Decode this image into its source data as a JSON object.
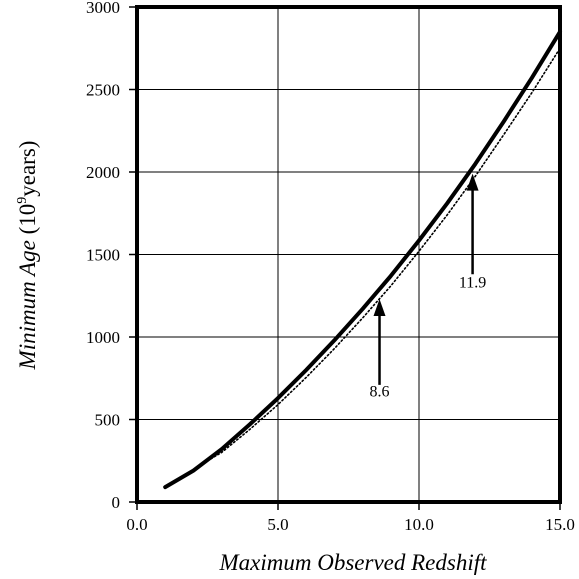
{
  "chart_data": {
    "type": "line",
    "title": "",
    "xlabel": "Maximum Observed Redshift",
    "ylabel": {
      "italic": "Minimum Age",
      "prefix": " (10",
      "sup": "9",
      "suffix": "years)"
    },
    "xlim": [
      0,
      15
    ],
    "ylim": [
      0,
      3000
    ],
    "x_ticks": [
      0,
      5,
      10,
      15
    ],
    "x_tick_labels": [
      "0.0",
      "5.0",
      "10.0",
      "15.0"
    ],
    "y_ticks": [
      0,
      500,
      1000,
      1500,
      2000,
      2500,
      3000
    ],
    "y_tick_labels": [
      "0",
      "500",
      "1000",
      "1500",
      "2000",
      "2500",
      "3000"
    ],
    "grid": true,
    "series": [
      {
        "style": "solid-thick",
        "color": "#000000",
        "x": [
          1,
          2,
          3,
          4,
          5,
          6,
          7,
          8,
          9,
          10,
          11,
          12,
          13,
          14,
          15
        ],
        "y": [
          90,
          190,
          320,
          470,
          630,
          800,
          980,
          1170,
          1370,
          1585,
          1810,
          2050,
          2305,
          2570,
          2850
        ]
      },
      {
        "style": "dotted",
        "color": "#000000",
        "x": [
          2.5,
          3,
          4,
          5,
          6,
          7,
          8,
          9,
          10,
          11,
          12,
          13,
          14,
          15
        ],
        "y": [
          250,
          300,
          440,
          590,
          755,
          930,
          1115,
          1310,
          1520,
          1740,
          1975,
          2225,
          2480,
          2750
        ]
      }
    ],
    "annotations": [
      {
        "label": "8.6",
        "x": 8.6,
        "arrow_tip_y": 1230,
        "arrow_tail_y": 710,
        "label_y": 640
      },
      {
        "label": "11.9",
        "x": 11.9,
        "arrow_tip_y": 1990,
        "arrow_tail_y": 1380,
        "label_y": 1300
      }
    ]
  }
}
